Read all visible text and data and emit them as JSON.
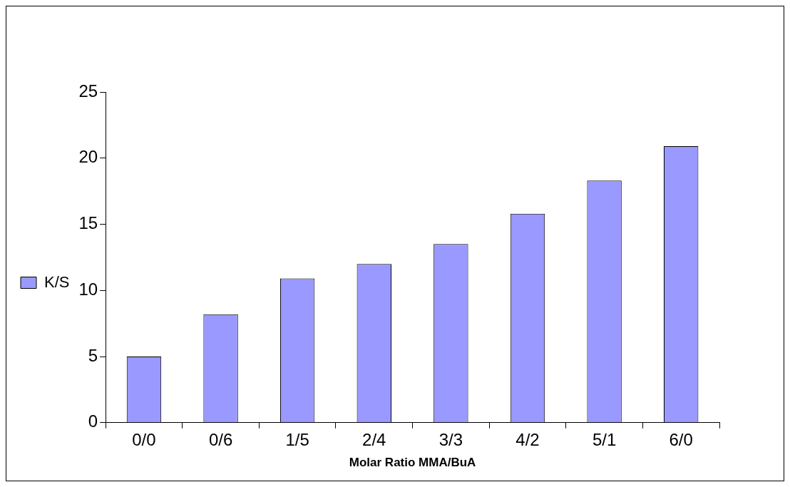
{
  "chart_data": {
    "type": "bar",
    "xlabel": "Molar Ratio MMA/BuA",
    "categories": [
      "0/0",
      "0/6",
      "1/5",
      "2/4",
      "3/3",
      "4/2",
      "5/1",
      "6/0"
    ],
    "series": [
      {
        "name": "K/S",
        "color": "#9999ff",
        "values": [
          5.0,
          8.2,
          10.9,
          12.0,
          13.5,
          15.8,
          18.3,
          20.9
        ]
      }
    ],
    "ylim": [
      0,
      25
    ],
    "yticks": [
      0,
      5,
      10,
      15,
      20,
      25
    ],
    "grid": false,
    "legend": "left"
  }
}
